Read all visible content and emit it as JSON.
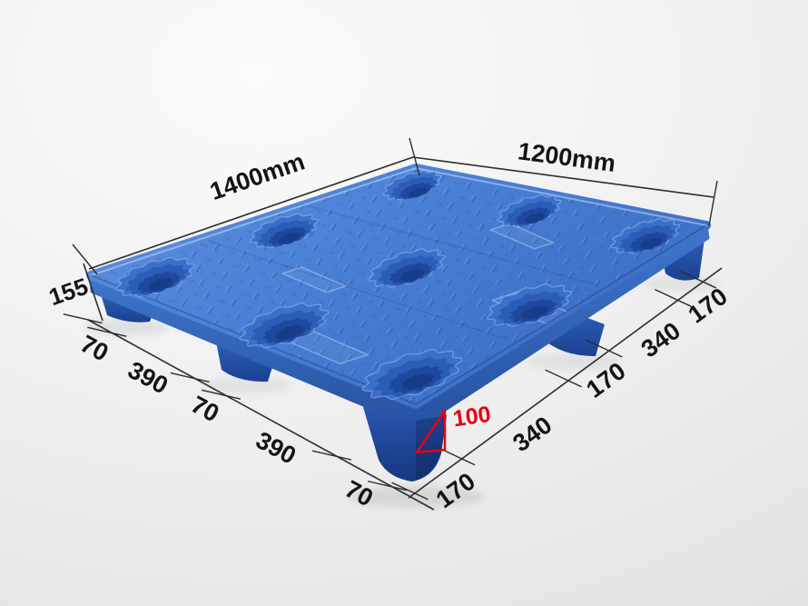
{
  "image": {
    "subject": "blue plastic pallet with dimension annotations",
    "background_top": "#fbfbfb",
    "background_bottom": "#e2e2e2"
  },
  "colors": {
    "deck_light": "#5e92e0",
    "deck_mid": "#4a80d6",
    "deck_dark": "#3a6cc4",
    "band_light": "#3f76cc",
    "band_dark": "#27519f",
    "leg_light": "#3166c2",
    "leg_dark": "#1b4190",
    "front_leg_dark": "#16397f",
    "cup_rim": "#3b70ca",
    "cup_wall": "#2b5cb6",
    "cup_deep": "#1e489f",
    "cup_deepest": "#173c88",
    "dim_line": "#2d2d2d",
    "dim_text": "#141414",
    "highlight_red": "#e60012"
  },
  "dimensions": {
    "top_left_edge_label": "1400mm",
    "top_right_edge_label": "1200mm",
    "overall_height_label": "155",
    "leg_height_label": "100",
    "bottom_left_chain": [
      "70",
      "390",
      "70",
      "390",
      "70"
    ],
    "bottom_right_chain": [
      "170",
      "340",
      "170",
      "340",
      "170"
    ]
  }
}
